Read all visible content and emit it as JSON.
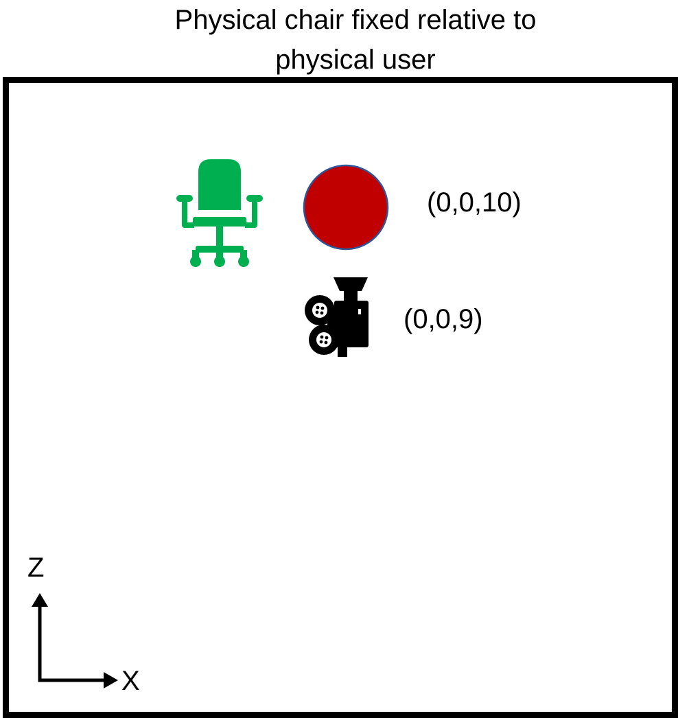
{
  "title_line1": "Physical chair fixed relative to",
  "title_line2": "physical user",
  "user_position": "(0,0,10)",
  "camera_position": "(0,0,9)",
  "axis_z_label": "Z",
  "axis_x_label": "X",
  "icons": {
    "chair": "office-chair-icon",
    "user": "red-circle-user",
    "camera": "movie-camera-icon"
  },
  "colors": {
    "chair": "#00b050",
    "user_fill": "#c00000",
    "user_stroke": "#2f5597",
    "frame": "#000000"
  }
}
